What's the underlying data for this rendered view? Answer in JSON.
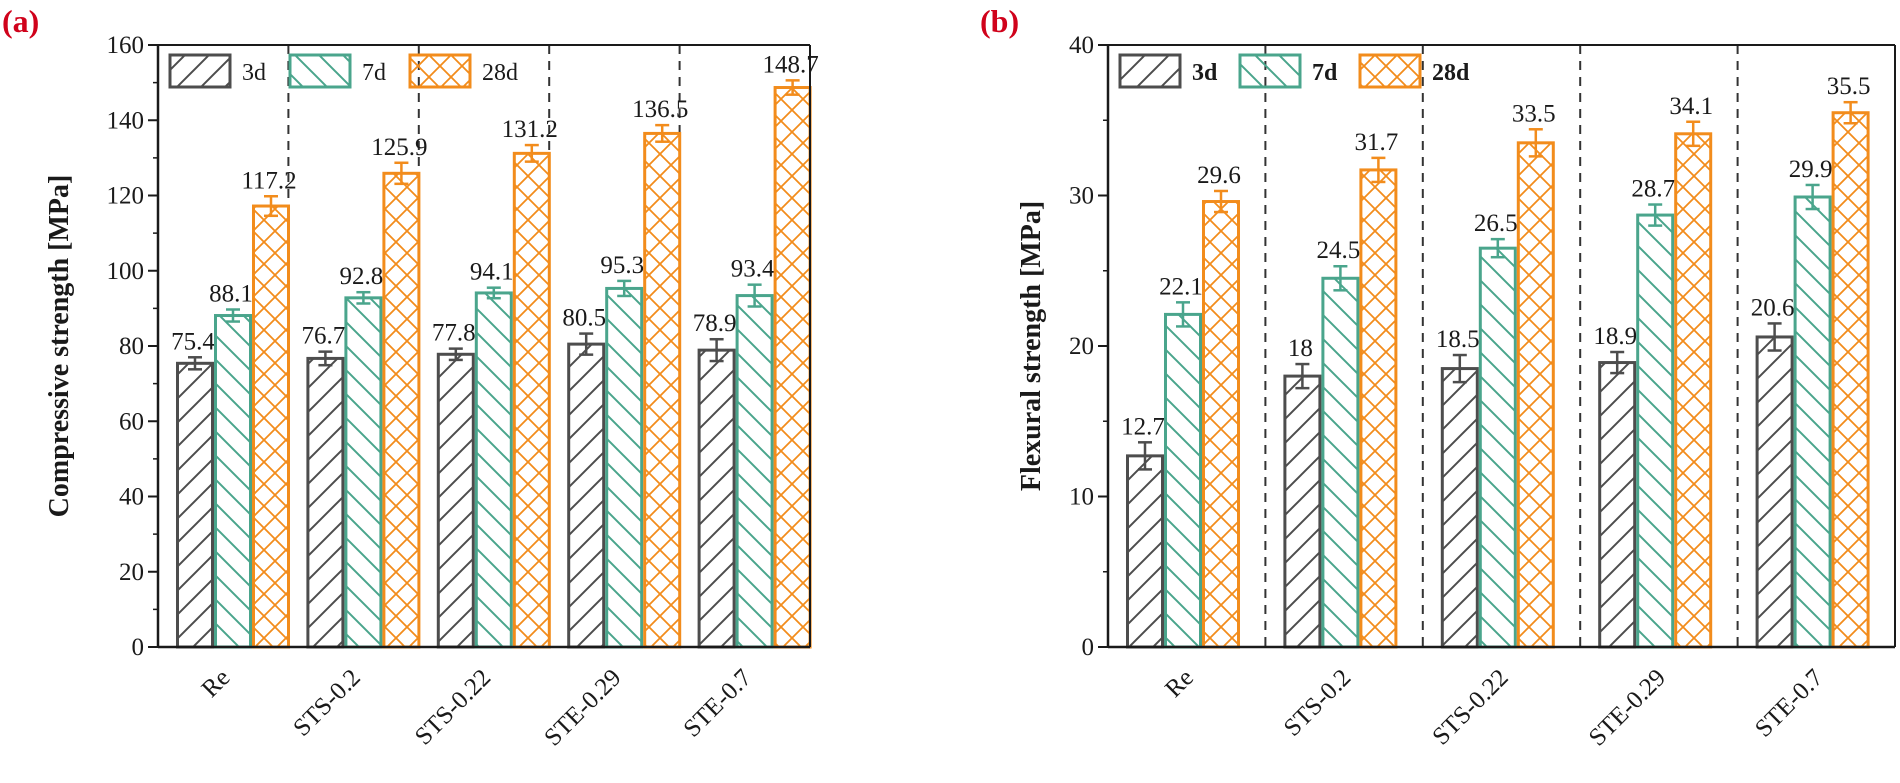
{
  "colors": {
    "3d": "#4d4d4d",
    "7d": "#4aa58c",
    "28d": "#f28c1c",
    "panel_label": "#d0021b"
  },
  "chart_data": [
    {
      "type": "bar",
      "panel_label": "(a)",
      "ylabel": "Compressive strength [MPa]",
      "ylim": [
        0,
        160
      ],
      "yticks": [
        "0",
        "20",
        "40",
        "60",
        "80",
        "100",
        "120",
        "140",
        "160"
      ],
      "ytick_values": [
        0,
        20,
        40,
        60,
        80,
        100,
        120,
        140,
        160
      ],
      "minor_step": 10,
      "categories": [
        "Re",
        "STS-0.2",
        "STS-0.22",
        "STE-0.29",
        "STE-0.7"
      ],
      "legend_bold": false,
      "series": [
        {
          "name": "3d",
          "key": "3d",
          "pattern": "slash",
          "values": [
            75.4,
            76.7,
            77.8,
            80.5,
            78.9
          ],
          "labels": [
            "75.4",
            "76.7",
            "77.8",
            "80.5",
            "78.9"
          ],
          "errors": [
            1.6,
            1.8,
            1.5,
            2.8,
            2.9
          ]
        },
        {
          "name": "7d",
          "key": "7d",
          "pattern": "backslash",
          "values": [
            88.1,
            92.8,
            94.1,
            95.3,
            93.4
          ],
          "labels": [
            "88.1",
            "92.8",
            "94.1",
            "95.3",
            "93.4"
          ],
          "errors": [
            1.6,
            1.5,
            1.4,
            2.0,
            2.9
          ]
        },
        {
          "name": "28d",
          "key": "28d",
          "pattern": "cross",
          "values": [
            117.2,
            125.9,
            131.2,
            136.5,
            148.7
          ],
          "labels": [
            "117.2",
            "125.9",
            "131.2",
            "136.5",
            "148.7"
          ],
          "errors": [
            2.6,
            2.8,
            2.2,
            2.2,
            1.9
          ]
        }
      ]
    },
    {
      "type": "bar",
      "panel_label": "(b)",
      "ylabel": "Flexural strength [MPa]",
      "ylim": [
        0,
        40
      ],
      "yticks": [
        "0",
        "10",
        "20",
        "30",
        "40"
      ],
      "ytick_values": [
        0,
        10,
        20,
        30,
        40
      ],
      "minor_step": 5,
      "categories": [
        "Re",
        "STS-0.2",
        "STS-0.22",
        "STE-0.29",
        "STE-0.7"
      ],
      "legend_bold": true,
      "series": [
        {
          "name": "3d",
          "key": "3d",
          "pattern": "slash",
          "values": [
            12.7,
            18,
            18.5,
            18.9,
            20.6
          ],
          "labels": [
            "12.7",
            "18",
            "18.5",
            "18.9",
            "20.6"
          ],
          "errors": [
            0.9,
            0.8,
            0.9,
            0.7,
            0.9
          ]
        },
        {
          "name": "7d",
          "key": "7d",
          "pattern": "backslash",
          "values": [
            22.1,
            24.5,
            26.5,
            28.7,
            29.9
          ],
          "labels": [
            "22.1",
            "24.5",
            "26.5",
            "28.7",
            "29.9"
          ],
          "errors": [
            0.8,
            0.8,
            0.6,
            0.7,
            0.8
          ]
        },
        {
          "name": "28d",
          "key": "28d",
          "pattern": "cross",
          "values": [
            29.6,
            31.7,
            33.5,
            34.1,
            35.5
          ],
          "labels": [
            "29.6",
            "31.7",
            "33.5",
            "34.1",
            "35.5"
          ],
          "errors": [
            0.7,
            0.8,
            0.9,
            0.8,
            0.7
          ]
        }
      ]
    }
  ]
}
